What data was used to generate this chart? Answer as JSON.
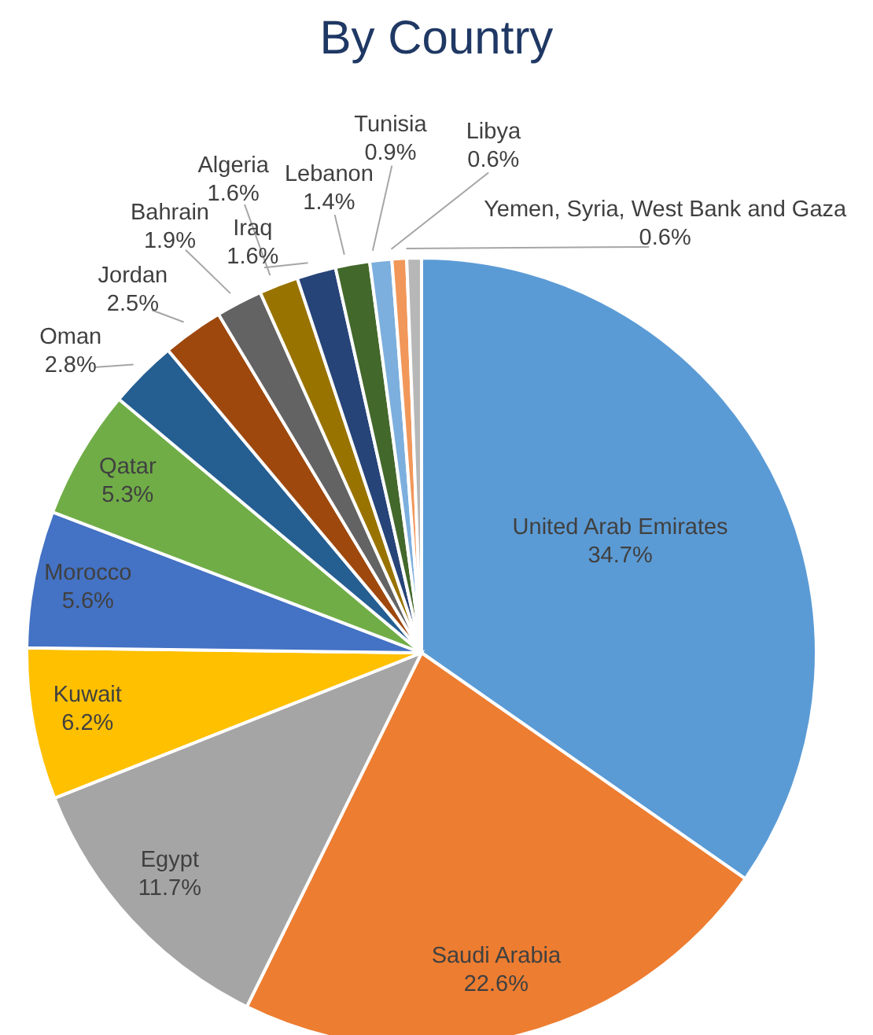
{
  "chart_data": {
    "type": "pie",
    "title": "By Country",
    "categories": [
      "United Arab Emirates",
      "Saudi Arabia",
      "Egypt",
      "Kuwait",
      "Morocco",
      "Qatar",
      "Oman",
      "Jordan",
      "Bahrain",
      "Algeria",
      "Iraq",
      "Lebanon",
      "Tunisia",
      "Libya",
      "Yemen, Syria, West Bank and Gaza"
    ],
    "values": [
      34.7,
      22.6,
      11.7,
      6.2,
      5.6,
      5.3,
      2.8,
      2.5,
      1.9,
      1.6,
      1.6,
      1.4,
      0.9,
      0.6,
      0.6
    ],
    "value_labels": [
      "34.7%",
      "22.6%",
      "11.7%",
      "6.2%",
      "5.6%",
      "5.3%",
      "2.8%",
      "2.5%",
      "1.9%",
      "1.6%",
      "1.6%",
      "1.4%",
      "0.9%",
      "0.6%",
      "0.6%"
    ],
    "colors": [
      "#5b9bd5",
      "#ed7d31",
      "#a5a5a5",
      "#ffc000",
      "#4472c4",
      "#70ad47",
      "#255e91",
      "#9e480e",
      "#636363",
      "#997300",
      "#264478",
      "#43682b",
      "#7cafdd",
      "#f1975a",
      "#b7b7b7"
    ]
  }
}
